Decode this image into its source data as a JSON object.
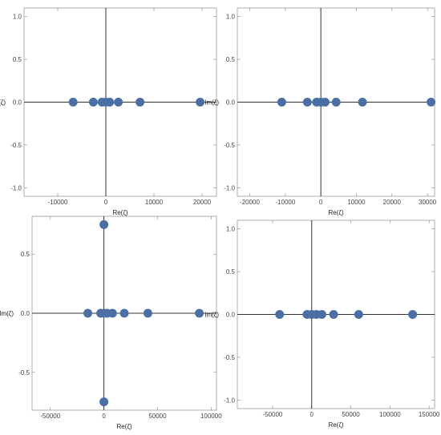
{
  "style": {
    "point_color": "#4a6fa5"
  },
  "chart_data": [
    {
      "type": "scatter",
      "xlabel": "Re(ζ)",
      "ylabel": "Im(ζ)",
      "xlim": [
        -17000,
        23000
      ],
      "ylim": [
        -1.1,
        1.1
      ],
      "x_ticks": [
        {
          "v": -10000,
          "label": "-10000"
        },
        {
          "v": 0,
          "label": "0"
        },
        {
          "v": 10000,
          "label": "10000"
        },
        {
          "v": 20000,
          "label": "20000"
        }
      ],
      "y_ticks": [
        {
          "v": 1.0,
          "label": "1.0"
        },
        {
          "v": 0.5,
          "label": "0.5"
        },
        {
          "v": 0.0,
          "label": "0.0"
        },
        {
          "v": -0.5,
          "label": "-0.5"
        },
        {
          "v": -1.0,
          "label": "-1.0"
        }
      ],
      "points": [
        [
          -6800,
          0
        ],
        [
          -2600,
          0
        ],
        [
          -800,
          0
        ],
        [
          0,
          0
        ],
        [
          800,
          0
        ],
        [
          2600,
          0
        ],
        [
          7100,
          0
        ],
        [
          19600,
          0
        ]
      ]
    },
    {
      "type": "scatter",
      "xlabel": "Re(ζ)",
      "ylabel": "Im(ζ)",
      "xlim": [
        -23500,
        32000
      ],
      "ylim": [
        -1.1,
        1.1
      ],
      "x_ticks": [
        {
          "v": -20000,
          "label": "-20000"
        },
        {
          "v": -10000,
          "label": "-10000"
        },
        {
          "v": 0,
          "label": "0"
        },
        {
          "v": 10000,
          "label": "10000"
        },
        {
          "v": 20000,
          "label": "20000"
        },
        {
          "v": 30000,
          "label": "30000"
        }
      ],
      "y_ticks": [
        {
          "v": 1.0,
          "label": "1.0"
        },
        {
          "v": 0.5,
          "label": "0.5"
        },
        {
          "v": 0.0,
          "label": "0.0"
        },
        {
          "v": -0.5,
          "label": "-0.5"
        },
        {
          "v": -1.0,
          "label": "-1.0"
        }
      ],
      "points": [
        [
          -11000,
          0
        ],
        [
          -3800,
          0
        ],
        [
          -1200,
          0
        ],
        [
          0,
          0
        ],
        [
          1200,
          0
        ],
        [
          4300,
          0
        ],
        [
          11700,
          0
        ],
        [
          31000,
          0
        ]
      ]
    },
    {
      "type": "scatter",
      "xlabel": "Re(ζ)",
      "ylabel": "Im(ζ)",
      "xlim": [
        -67000,
        105000
      ],
      "ylim": [
        -0.82,
        0.82
      ],
      "x_ticks": [
        {
          "v": -50000,
          "label": "-50000"
        },
        {
          "v": 0,
          "label": "0"
        },
        {
          "v": 50000,
          "label": "50000"
        },
        {
          "v": 100000,
          "label": "100000"
        }
      ],
      "y_ticks": [
        {
          "v": 0.5,
          "label": "0.5"
        },
        {
          "v": 0.0,
          "label": "0.0"
        },
        {
          "v": -0.5,
          "label": "-0.5"
        }
      ],
      "points": [
        [
          -15000,
          0
        ],
        [
          -3000,
          0
        ],
        [
          0,
          0
        ],
        [
          3000,
          0
        ],
        [
          8000,
          0
        ],
        [
          19000,
          0
        ],
        [
          41000,
          0
        ],
        [
          89000,
          0
        ],
        [
          0,
          0.75
        ],
        [
          0,
          -0.75
        ]
      ]
    },
    {
      "type": "scatter",
      "xlabel": "Re(ζ)",
      "ylabel": "Im(ζ)",
      "xlim": [
        -95000,
        157000
      ],
      "ylim": [
        -1.1,
        1.1
      ],
      "x_ticks": [
        {
          "v": -50000,
          "label": "-50000"
        },
        {
          "v": 0,
          "label": "0"
        },
        {
          "v": 50000,
          "label": "50000"
        },
        {
          "v": 100000,
          "label": "100000"
        },
        {
          "v": 150000,
          "label": "150000"
        }
      ],
      "y_ticks": [
        {
          "v": 1.0,
          "label": "1.0"
        },
        {
          "v": 0.5,
          "label": "0.5"
        },
        {
          "v": 0.0,
          "label": "0.0"
        },
        {
          "v": -0.5,
          "label": "-0.5"
        },
        {
          "v": -1.0,
          "label": "-1.0"
        }
      ],
      "points": [
        [
          -41000,
          0
        ],
        [
          -6000,
          0
        ],
        [
          0,
          0
        ],
        [
          6000,
          0
        ],
        [
          13000,
          0
        ],
        [
          28000,
          0
        ],
        [
          60000,
          0
        ],
        [
          129000,
          0
        ]
      ]
    }
  ]
}
